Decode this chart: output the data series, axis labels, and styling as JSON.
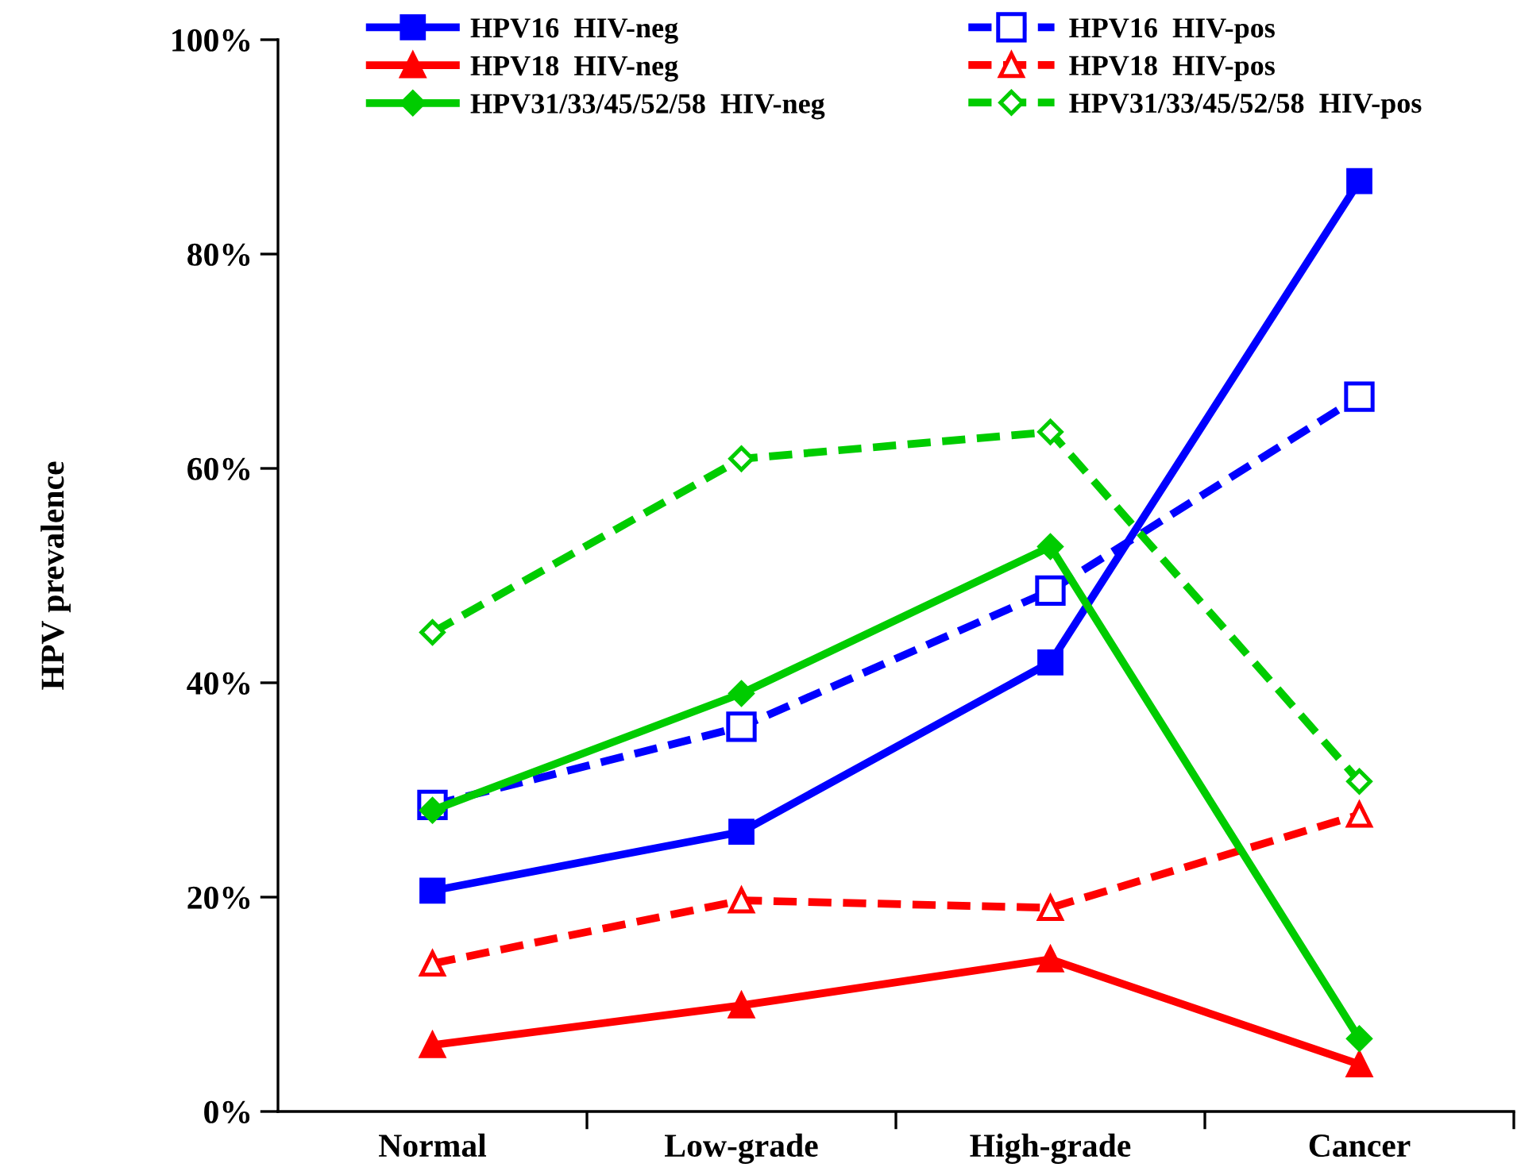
{
  "chart_data": {
    "type": "line",
    "ylabel": "HPV prevalence",
    "categories": [
      "Normal",
      "Low-grade",
      "High-grade",
      "Cancer"
    ],
    "ylim": [
      0,
      100
    ],
    "yticks": [
      {
        "value": 0,
        "label": "0%"
      },
      {
        "value": 20,
        "label": "20%"
      },
      {
        "value": 40,
        "label": "40%"
      },
      {
        "value": 60,
        "label": "60%"
      },
      {
        "value": 80,
        "label": "80%"
      },
      {
        "value": 100,
        "label": "100%"
      }
    ],
    "grid": false,
    "legend": "top",
    "series": [
      {
        "name": "HPV16  HIV-neg",
        "color": "#0000ff",
        "marker": "square",
        "line_style": "solid",
        "values": [
          20.6,
          26.1,
          41.9,
          86.8
        ]
      },
      {
        "name": "HPV16  HIV-pos",
        "color": "#0000ff",
        "marker": "square",
        "line_style": "dashed",
        "values": [
          28.6,
          35.9,
          48.6,
          66.7
        ]
      },
      {
        "name": "HPV18  HIV-neg",
        "color": "#ff0000",
        "marker": "triangle",
        "line_style": "solid",
        "values": [
          6.2,
          9.9,
          14.2,
          4.4
        ]
      },
      {
        "name": "HPV18  HIV-pos",
        "color": "#ff0000",
        "marker": "triangle",
        "line_style": "dashed",
        "values": [
          13.8,
          19.7,
          19.0,
          27.7
        ]
      },
      {
        "name": "HPV31/33/45/52/58  HIV-neg",
        "color": "#00cc00",
        "marker": "diamond",
        "line_style": "solid",
        "values": [
          28.1,
          39.0,
          52.7,
          6.8
        ]
      },
      {
        "name": "HPV31/33/45/52/58  HIV-pos",
        "color": "#00cc00",
        "marker": "diamond",
        "line_style": "dashed",
        "values": [
          44.7,
          60.9,
          63.4,
          30.8
        ]
      }
    ]
  }
}
